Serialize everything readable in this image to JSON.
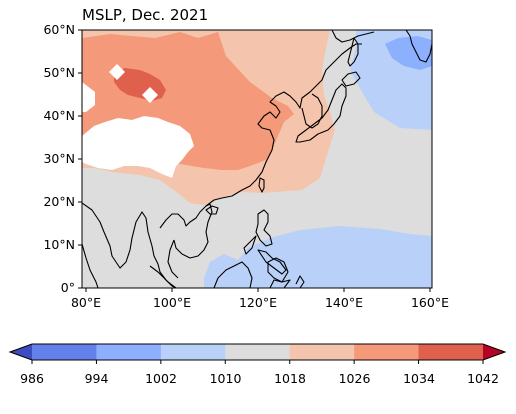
{
  "title": "MSLP, Dec. 2021",
  "axes": {
    "x_ticks": [
      "80°E",
      "100°E",
      "120°E",
      "140°E",
      "160°E"
    ],
    "y_ticks": [
      "0°",
      "10°N",
      "20°N",
      "30°N",
      "40°N",
      "50°N",
      "60°N"
    ],
    "lon_range": [
      79,
      161
    ],
    "lat_range": [
      0,
      60
    ]
  },
  "colorbar": {
    "levels": [
      "986",
      "994",
      "1002",
      "1010",
      "1018",
      "1026",
      "1034",
      "1042"
    ],
    "colors": [
      "#3b4cc0",
      "#6282ea",
      "#8db0fe",
      "#b9d0f9",
      "#dddddd",
      "#f5c4ac",
      "#f49a7b",
      "#de604d",
      "#b40426"
    ],
    "extend": "both",
    "orientation": "horizontal",
    "placement": "bottom"
  },
  "chart_data": {
    "type": "heatmap",
    "title": "MSLP, Dec. 2021",
    "variable": "Mean sea level pressure",
    "xlabel": "",
    "ylabel": "",
    "x_ticks": [
      80,
      100,
      120,
      140,
      160
    ],
    "y_ticks": [
      0,
      10,
      20,
      30,
      40,
      50,
      60
    ],
    "xlim": [
      79,
      161
    ],
    "ylim": [
      0,
      60
    ],
    "levels": [
      986,
      994,
      1002,
      1010,
      1018,
      1026,
      1034,
      1042
    ],
    "regions": [
      {
        "band": "1034-1042",
        "location": "western Mongolia, near 90-95°E, 47-50°N"
      },
      {
        "band": "1026-1034",
        "location": "Siberia, Mongolia and northern/central China"
      },
      {
        "band": "1018-1026",
        "location": "Northeast Asia, Korea, Japan, East China Sea and southern China coast"
      },
      {
        "band": "1010-1018",
        "location": "tropics, South and Southeast Asia, western North Pacific"
      },
      {
        "band": "1002-1010",
        "location": "Sea of Okhotsk / Kamchatka region and Philippines-Indonesia belt"
      },
      {
        "band": "994-1002",
        "location": "near 148-156°E, 52-56°N"
      }
    ],
    "masked": "high terrain over the Tibetan Plateau (white)"
  }
}
